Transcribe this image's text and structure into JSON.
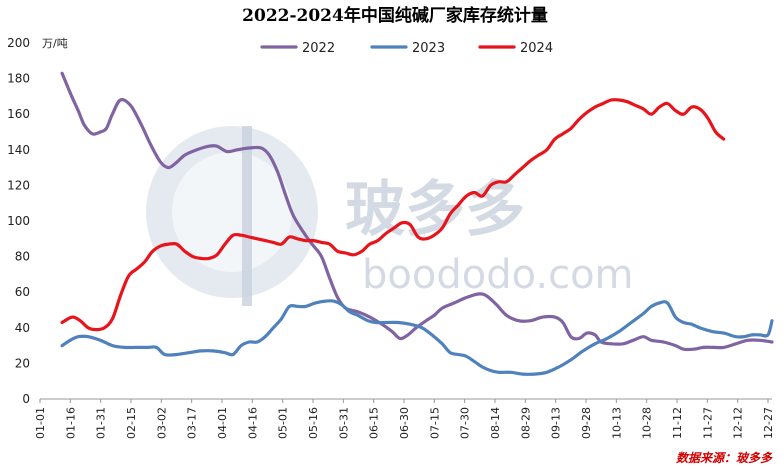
{
  "chart_data": {
    "type": "line",
    "title": "2022-2024年中国纯碱厂家库存统计量",
    "unit": "万/吨",
    "ylim": [
      0,
      200
    ],
    "yticks": [
      0,
      20,
      40,
      60,
      80,
      100,
      120,
      140,
      160,
      180,
      200
    ],
    "xticks": [
      "01-01",
      "01-16",
      "01-31",
      "02-15",
      "03-02",
      "03-17",
      "04-01",
      "04-16",
      "05-01",
      "05-16",
      "05-31",
      "06-15",
      "06-30",
      "07-15",
      "07-30",
      "08-14",
      "08-29",
      "09-13",
      "09-28",
      "10-13",
      "10-28",
      "11-12",
      "11-27",
      "12-12",
      "12-27"
    ],
    "x_day_range": [
      0,
      364
    ],
    "legend_position": "top",
    "grid": false,
    "source": "数据来源：玻多多",
    "watermark": {
      "brand": "玻多多",
      "site": "boododo.com"
    },
    "series": [
      {
        "name": "2022",
        "color": "#8064a2",
        "points": [
          [
            11,
            183
          ],
          [
            15,
            172
          ],
          [
            19,
            162
          ],
          [
            22,
            154
          ],
          [
            26,
            149
          ],
          [
            30,
            150
          ],
          [
            33,
            152
          ],
          [
            36,
            160
          ],
          [
            40,
            168
          ],
          [
            45,
            165
          ],
          [
            50,
            155
          ],
          [
            55,
            143
          ],
          [
            60,
            133
          ],
          [
            64,
            130
          ],
          [
            68,
            133
          ],
          [
            72,
            137
          ],
          [
            78,
            140
          ],
          [
            84,
            142
          ],
          [
            88,
            142
          ],
          [
            93,
            139
          ],
          [
            98,
            140
          ],
          [
            104,
            141
          ],
          [
            110,
            141
          ],
          [
            114,
            137
          ],
          [
            118,
            128
          ],
          [
            122,
            115
          ],
          [
            126,
            103
          ],
          [
            132,
            92
          ],
          [
            136,
            86
          ],
          [
            140,
            80
          ],
          [
            144,
            68
          ],
          [
            148,
            57
          ],
          [
            152,
            51
          ],
          [
            158,
            49
          ],
          [
            164,
            46
          ],
          [
            170,
            42
          ],
          [
            175,
            38
          ],
          [
            179,
            34
          ],
          [
            183,
            36
          ],
          [
            187,
            40
          ],
          [
            192,
            44
          ],
          [
            196,
            47
          ],
          [
            200,
            51
          ],
          [
            206,
            54
          ],
          [
            212,
            57
          ],
          [
            218,
            59
          ],
          [
            222,
            58
          ],
          [
            227,
            53
          ],
          [
            232,
            47
          ],
          [
            238,
            44
          ],
          [
            244,
            44
          ],
          [
            250,
            46
          ],
          [
            256,
            46
          ],
          [
            260,
            43
          ],
          [
            264,
            35
          ],
          [
            268,
            34
          ],
          [
            272,
            37
          ],
          [
            276,
            36
          ],
          [
            279,
            32
          ],
          [
            284,
            31
          ],
          [
            290,
            31
          ],
          [
            295,
            33
          ],
          [
            300,
            35
          ],
          [
            304,
            33
          ],
          [
            310,
            32
          ],
          [
            316,
            30
          ],
          [
            320,
            28
          ],
          [
            325,
            28
          ],
          [
            330,
            29
          ],
          [
            335,
            29
          ],
          [
            340,
            29
          ],
          [
            346,
            31
          ],
          [
            352,
            33
          ],
          [
            358,
            33
          ],
          [
            364,
            32
          ]
        ]
      },
      {
        "name": "2023",
        "color": "#4f81bd",
        "points": [
          [
            11,
            30
          ],
          [
            15,
            33
          ],
          [
            19,
            35
          ],
          [
            24,
            35
          ],
          [
            30,
            33
          ],
          [
            36,
            30
          ],
          [
            42,
            29
          ],
          [
            48,
            29
          ],
          [
            54,
            29
          ],
          [
            58,
            29
          ],
          [
            62,
            25
          ],
          [
            68,
            25
          ],
          [
            74,
            26
          ],
          [
            80,
            27
          ],
          [
            86,
            27
          ],
          [
            92,
            26
          ],
          [
            96,
            25
          ],
          [
            100,
            30
          ],
          [
            104,
            32
          ],
          [
            108,
            32
          ],
          [
            112,
            35
          ],
          [
            116,
            40
          ],
          [
            120,
            45
          ],
          [
            124,
            52
          ],
          [
            128,
            52
          ],
          [
            132,
            52
          ],
          [
            137,
            54
          ],
          [
            142,
            55
          ],
          [
            146,
            55
          ],
          [
            150,
            53
          ],
          [
            154,
            49
          ],
          [
            158,
            47
          ],
          [
            163,
            44
          ],
          [
            167,
            43
          ],
          [
            172,
            43
          ],
          [
            178,
            43
          ],
          [
            184,
            42
          ],
          [
            190,
            40
          ],
          [
            196,
            35
          ],
          [
            200,
            31
          ],
          [
            204,
            26
          ],
          [
            208,
            25
          ],
          [
            212,
            24
          ],
          [
            216,
            21
          ],
          [
            220,
            18
          ],
          [
            224,
            16
          ],
          [
            228,
            15
          ],
          [
            234,
            15
          ],
          [
            240,
            14
          ],
          [
            246,
            14
          ],
          [
            252,
            15
          ],
          [
            258,
            18
          ],
          [
            264,
            22
          ],
          [
            270,
            27
          ],
          [
            276,
            31
          ],
          [
            282,
            34
          ],
          [
            288,
            38
          ],
          [
            294,
            43
          ],
          [
            300,
            48
          ],
          [
            304,
            52
          ],
          [
            308,
            54
          ],
          [
            312,
            54
          ],
          [
            316,
            46
          ],
          [
            320,
            43
          ],
          [
            324,
            42
          ],
          [
            328,
            40
          ],
          [
            334,
            38
          ],
          [
            340,
            37
          ],
          [
            346,
            35
          ],
          [
            350,
            35
          ],
          [
            354,
            36
          ],
          [
            358,
            36
          ],
          [
            362,
            36
          ],
          [
            364,
            44
          ]
        ]
      },
      {
        "name": "2024",
        "color": "#e8141b",
        "points": [
          [
            11,
            43
          ],
          [
            16,
            46
          ],
          [
            20,
            44
          ],
          [
            24,
            40
          ],
          [
            28,
            39
          ],
          [
            32,
            40
          ],
          [
            36,
            45
          ],
          [
            40,
            58
          ],
          [
            44,
            69
          ],
          [
            48,
            73
          ],
          [
            52,
            77
          ],
          [
            56,
            83
          ],
          [
            60,
            86
          ],
          [
            64,
            87
          ],
          [
            68,
            87
          ],
          [
            72,
            83
          ],
          [
            76,
            80
          ],
          [
            80,
            79
          ],
          [
            84,
            79
          ],
          [
            88,
            81
          ],
          [
            92,
            87
          ],
          [
            96,
            92
          ],
          [
            100,
            92
          ],
          [
            104,
            91
          ],
          [
            108,
            90
          ],
          [
            112,
            89
          ],
          [
            116,
            88
          ],
          [
            120,
            87
          ],
          [
            124,
            91
          ],
          [
            128,
            90
          ],
          [
            132,
            89
          ],
          [
            136,
            89
          ],
          [
            140,
            88
          ],
          [
            144,
            87
          ],
          [
            148,
            83
          ],
          [
            152,
            82
          ],
          [
            156,
            81
          ],
          [
            160,
            83
          ],
          [
            164,
            87
          ],
          [
            168,
            89
          ],
          [
            172,
            93
          ],
          [
            176,
            96
          ],
          [
            180,
            99
          ],
          [
            184,
            98
          ],
          [
            188,
            91
          ],
          [
            192,
            90
          ],
          [
            196,
            92
          ],
          [
            200,
            96
          ],
          [
            204,
            104
          ],
          [
            208,
            109
          ],
          [
            212,
            114
          ],
          [
            216,
            116
          ],
          [
            220,
            114
          ],
          [
            224,
            120
          ],
          [
            228,
            122
          ],
          [
            232,
            122
          ],
          [
            236,
            126
          ],
          [
            240,
            130
          ],
          [
            244,
            134
          ],
          [
            248,
            137
          ],
          [
            252,
            140
          ],
          [
            256,
            146
          ],
          [
            260,
            149
          ],
          [
            264,
            152
          ],
          [
            268,
            157
          ],
          [
            272,
            161
          ],
          [
            276,
            164
          ],
          [
            280,
            166
          ],
          [
            284,
            168
          ],
          [
            288,
            168
          ],
          [
            292,
            167
          ],
          [
            296,
            165
          ],
          [
            300,
            163
          ],
          [
            304,
            160
          ],
          [
            308,
            164
          ],
          [
            312,
            166
          ],
          [
            316,
            162
          ],
          [
            320,
            160
          ],
          [
            324,
            164
          ],
          [
            328,
            163
          ],
          [
            332,
            158
          ],
          [
            336,
            150
          ],
          [
            340,
            146
          ]
        ]
      }
    ]
  }
}
